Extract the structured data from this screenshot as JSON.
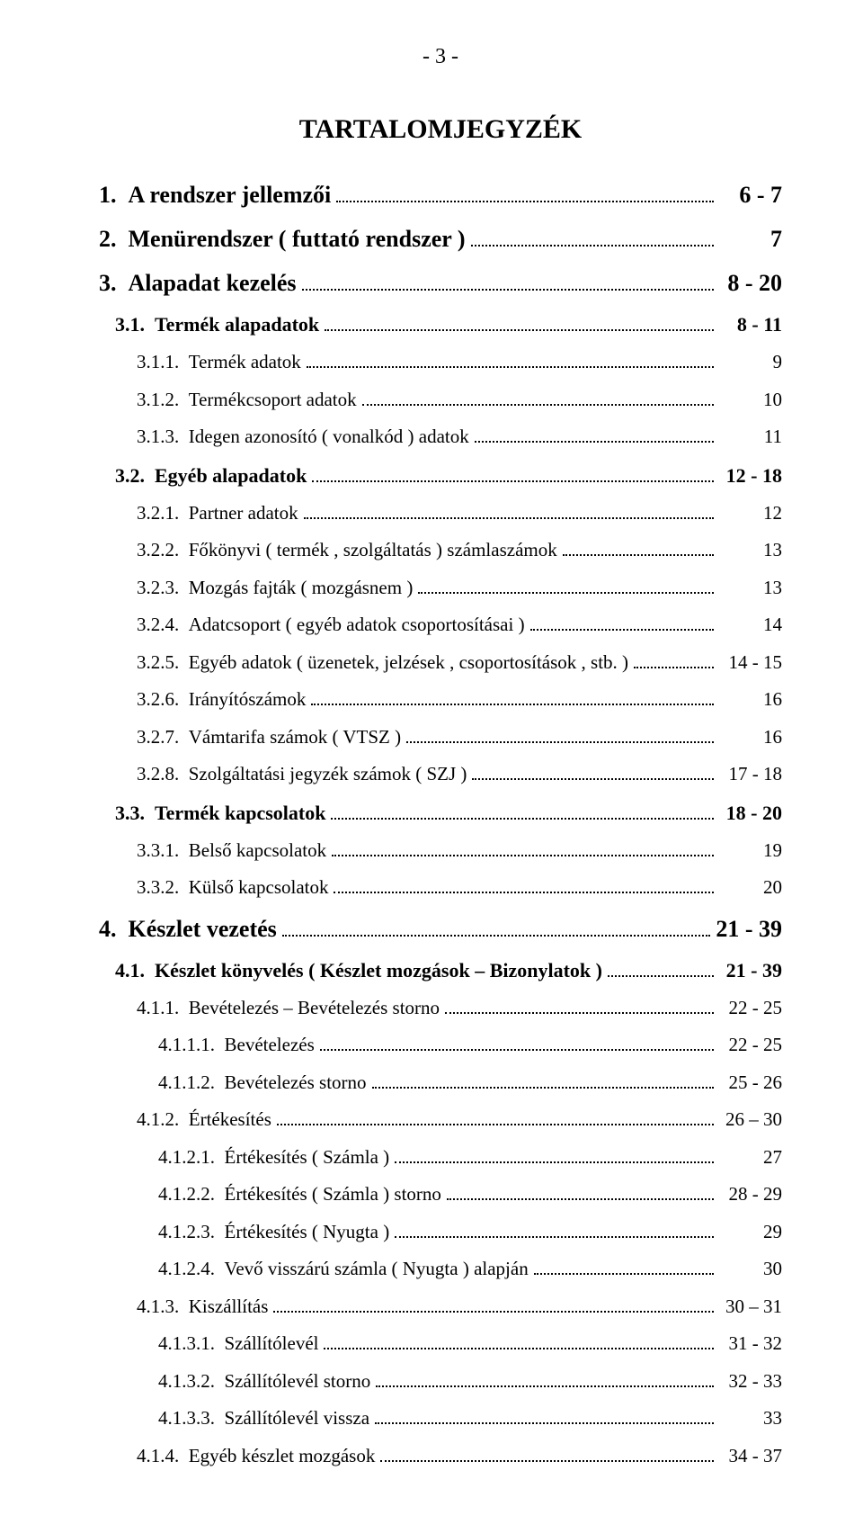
{
  "page_marker": "- 3 -",
  "title": "TARTALOMJEGYZÉK",
  "entries": [
    {
      "level": 1,
      "bold": true,
      "num": "1.",
      "text": "A rendszer jellemzői",
      "page": "6 - 7"
    },
    {
      "level": 1,
      "bold": true,
      "num": "2.",
      "text": "Menürendszer ( futtató rendszer )",
      "page": "7"
    },
    {
      "level": 1,
      "bold": true,
      "num": "3.",
      "text": "Alapadat kezelés",
      "page": "8 - 20"
    },
    {
      "level": 2,
      "bold": true,
      "num": "3.1.",
      "text": "Termék alapadatok",
      "page": "8 - 11"
    },
    {
      "level": 3,
      "bold": false,
      "num": "3.1.1.",
      "text": "Termék adatok",
      "page": "9"
    },
    {
      "level": 3,
      "bold": false,
      "num": "3.1.2.",
      "text": "Termékcsoport adatok",
      "page": "10"
    },
    {
      "level": 3,
      "bold": false,
      "num": "3.1.3.",
      "text": "Idegen azonosító ( vonalkód ) adatok",
      "page": "11"
    },
    {
      "level": 2,
      "bold": true,
      "num": "3.2.",
      "text": "Egyéb alapadatok",
      "page": "12 - 18"
    },
    {
      "level": 3,
      "bold": false,
      "num": "3.2.1.",
      "text": "Partner adatok",
      "page": "12"
    },
    {
      "level": 3,
      "bold": false,
      "num": "3.2.2.",
      "text": "Főkönyvi ( termék , szolgáltatás ) számlaszámok",
      "page": "13"
    },
    {
      "level": 3,
      "bold": false,
      "num": "3.2.3.",
      "text": "Mozgás fajták ( mozgásnem )",
      "page": "13"
    },
    {
      "level": 3,
      "bold": false,
      "num": "3.2.4.",
      "text": "Adatcsoport ( egyéb adatok csoportosításai )",
      "page": "14"
    },
    {
      "level": 3,
      "bold": false,
      "num": "3.2.5.",
      "text": "Egyéb adatok ( üzenetek, jelzések , csoportosítások , stb. )",
      "page": "14 - 15"
    },
    {
      "level": 3,
      "bold": false,
      "num": "3.2.6.",
      "text": "Irányítószámok",
      "page": "16"
    },
    {
      "level": 3,
      "bold": false,
      "num": "3.2.7.",
      "text": "Vámtarifa számok ( VTSZ )",
      "page": "16"
    },
    {
      "level": 3,
      "bold": false,
      "num": "3.2.8.",
      "text": "Szolgáltatási jegyzék számok ( SZJ )",
      "page": "17 - 18"
    },
    {
      "level": 2,
      "bold": true,
      "num": "3.3.",
      "text": "Termék kapcsolatok",
      "page": "18 - 20"
    },
    {
      "level": 3,
      "bold": false,
      "num": "3.3.1.",
      "text": "Belső kapcsolatok",
      "page": "19"
    },
    {
      "level": 3,
      "bold": false,
      "num": "3.3.2.",
      "text": "Külső kapcsolatok",
      "page": "20"
    },
    {
      "level": 1,
      "bold": true,
      "num": "4.",
      "text": "Készlet vezetés",
      "page": "21 - 39"
    },
    {
      "level": 2,
      "bold": true,
      "num": "4.1.",
      "text": "Készlet könyvelés ( Készlet mozgások – Bizonylatok )",
      "page": "21 - 39"
    },
    {
      "level": 3,
      "bold": false,
      "num": "4.1.1.",
      "text": "Bevételezés – Bevételezés storno",
      "page": "22 - 25"
    },
    {
      "level": 4,
      "bold": false,
      "num": "4.1.1.1.",
      "text": "Bevételezés",
      "page": "22 - 25"
    },
    {
      "level": 4,
      "bold": false,
      "num": "4.1.1.2.",
      "text": "Bevételezés storno",
      "page": "25 - 26"
    },
    {
      "level": 3,
      "bold": false,
      "num": "4.1.2.",
      "text": "Értékesítés",
      "page": "26 – 30"
    },
    {
      "level": 4,
      "bold": false,
      "num": "4.1.2.1.",
      "text": "Értékesítés ( Számla )",
      "page": "27"
    },
    {
      "level": 4,
      "bold": false,
      "num": "4.1.2.2.",
      "text": "Értékesítés ( Számla ) storno",
      "page": "28 - 29"
    },
    {
      "level": 4,
      "bold": false,
      "num": "4.1.2.3.",
      "text": "Értékesítés ( Nyugta )",
      "page": "29"
    },
    {
      "level": 4,
      "bold": false,
      "num": "4.1.2.4.",
      "text": "Vevő visszárú számla ( Nyugta ) alapján",
      "page": "30"
    },
    {
      "level": 3,
      "bold": false,
      "num": "4.1.3.",
      "text": "Kiszállítás",
      "page": "30 – 31"
    },
    {
      "level": 4,
      "bold": false,
      "num": "4.1.3.1.",
      "text": "Szállítólevél",
      "page": "31 - 32"
    },
    {
      "level": 4,
      "bold": false,
      "num": "4.1.3.2.",
      "text": "Szállítólevél storno",
      "page": "32 - 33"
    },
    {
      "level": 4,
      "bold": false,
      "num": "4.1.3.3.",
      "text": "Szállítólevél vissza",
      "page": "33"
    },
    {
      "level": 3,
      "bold": false,
      "num": "4.1.4.",
      "text": "Egyéb készlet mozgások",
      "page": "34 - 37"
    }
  ]
}
